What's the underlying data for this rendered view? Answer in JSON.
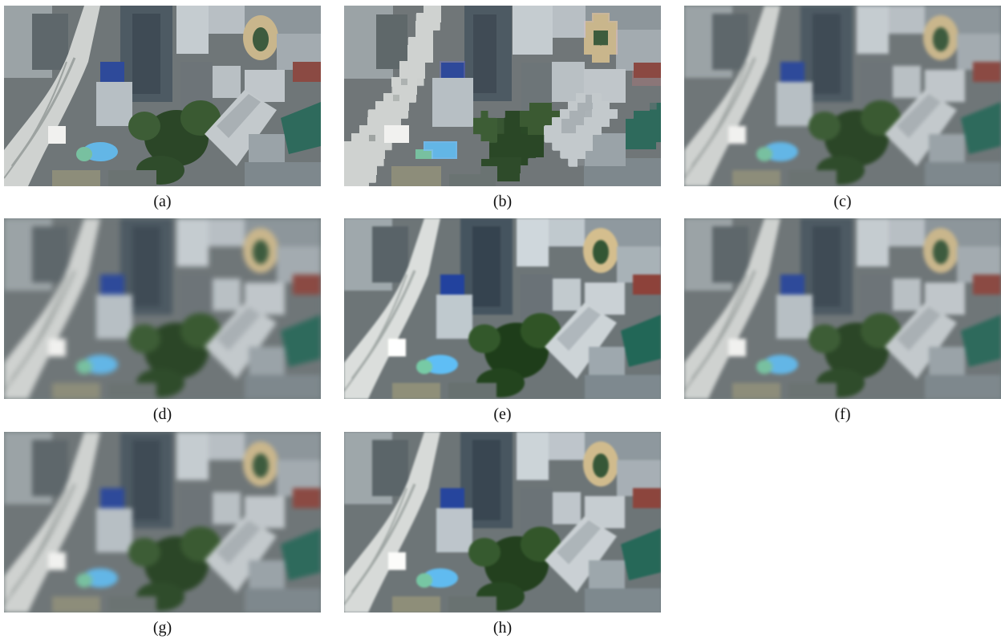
{
  "figure": {
    "panels": [
      {
        "id": "a",
        "label": "(a)"
      },
      {
        "id": "b",
        "label": "(b)"
      },
      {
        "id": "c",
        "label": "(c)"
      },
      {
        "id": "d",
        "label": "(d)"
      },
      {
        "id": "e",
        "label": "(e)"
      },
      {
        "id": "f",
        "label": "(f)"
      },
      {
        "id": "g",
        "label": "(g)"
      },
      {
        "id": "h",
        "label": "(h)"
      }
    ]
  },
  "colors": {
    "background": "#ffffff",
    "building_gray": "#8a9194",
    "tree_green": "#2f4a2a",
    "pool_blue": "#63b6e6",
    "roof_teal": "#2f6a5d",
    "highway": "#c9cbc9"
  }
}
